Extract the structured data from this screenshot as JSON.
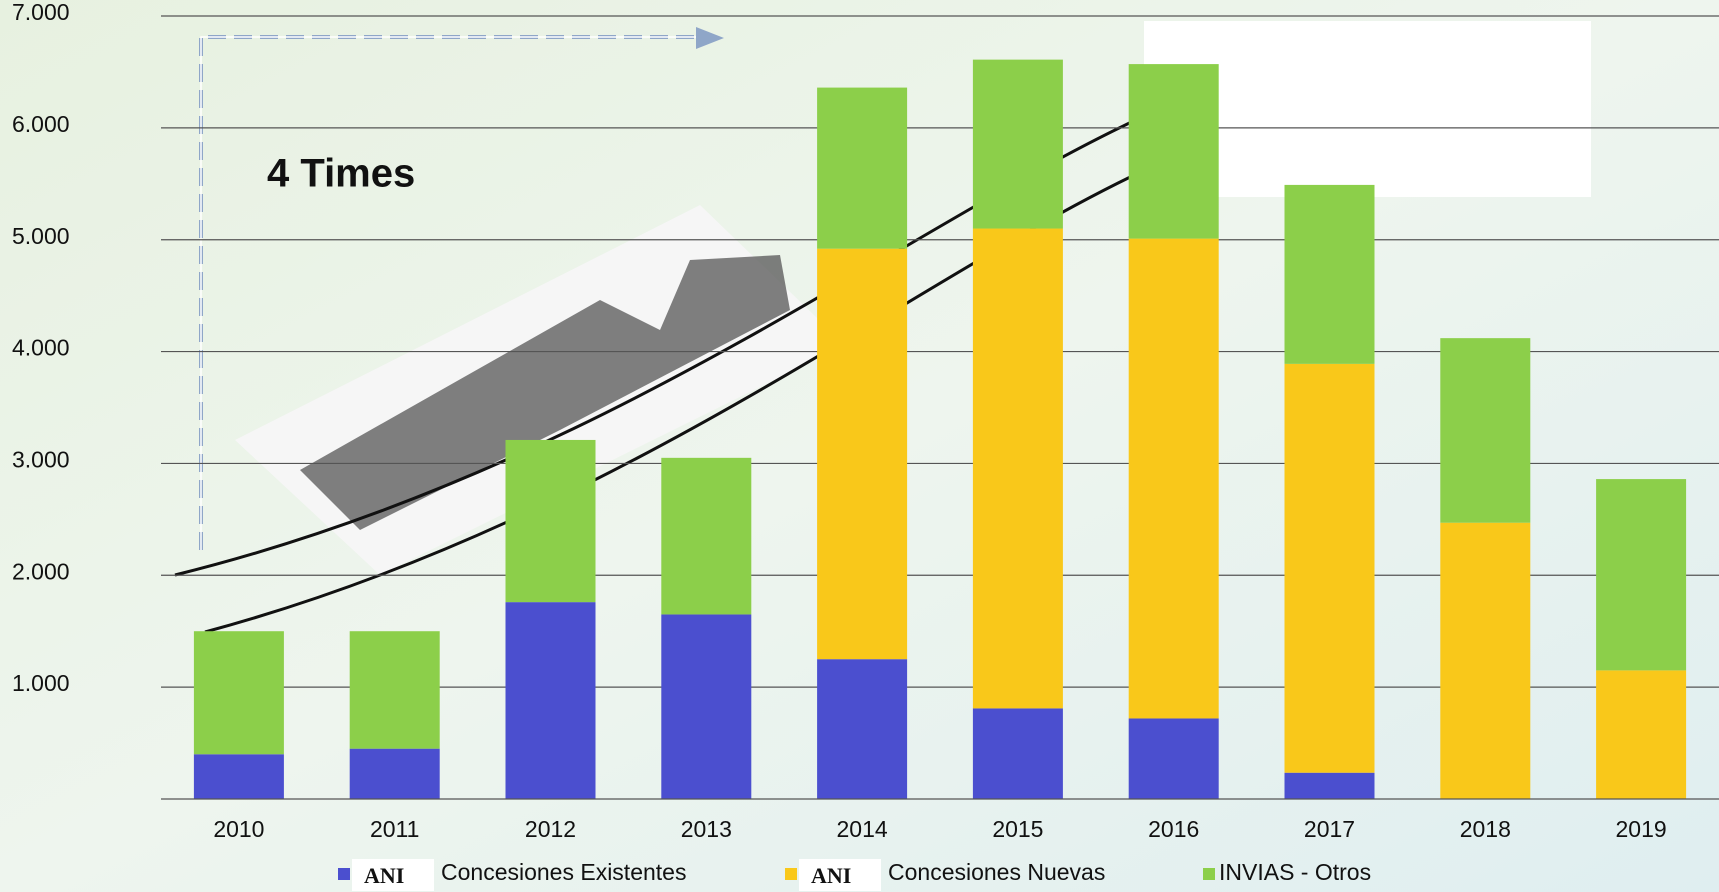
{
  "chart_data": {
    "type": "stacked_bar",
    "annotation": "4 Times",
    "categories": [
      "2010",
      "2011",
      "2012",
      "2013",
      "2014",
      "2015",
      "2016",
      "2017",
      "2018",
      "2019"
    ],
    "series": [
      {
        "group": "ANI",
        "name": "Concesiones Existentes",
        "color": "#4b4fcf",
        "values": [
          400,
          450,
          1760,
          1650,
          1250,
          810,
          720,
          235,
          0,
          0
        ]
      },
      {
        "group": "ANI",
        "name": "Concesiones Nuevas",
        "color": "#f9c81a",
        "values": [
          0,
          0,
          0,
          0,
          3670,
          4290,
          4290,
          3655,
          2470,
          1150
        ]
      },
      {
        "name": "INVIAS - Otros",
        "color": "#8ccf4a",
        "values": [
          1100,
          1050,
          1450,
          1400,
          1440,
          1510,
          1560,
          1600,
          1650,
          1710
        ]
      }
    ],
    "ylim": [
      0,
      7000
    ],
    "yticks": [
      {
        "value": 1000,
        "label": "1.000"
      },
      {
        "value": 2000,
        "label": "2.000"
      },
      {
        "value": 3000,
        "label": "3.000"
      },
      {
        "value": 4000,
        "label": "4.000"
      },
      {
        "value": 5000,
        "label": "5.000"
      },
      {
        "value": 6000,
        "label": "6.000"
      },
      {
        "value": 7000,
        "label": "7.000"
      }
    ],
    "grid": true
  }
}
